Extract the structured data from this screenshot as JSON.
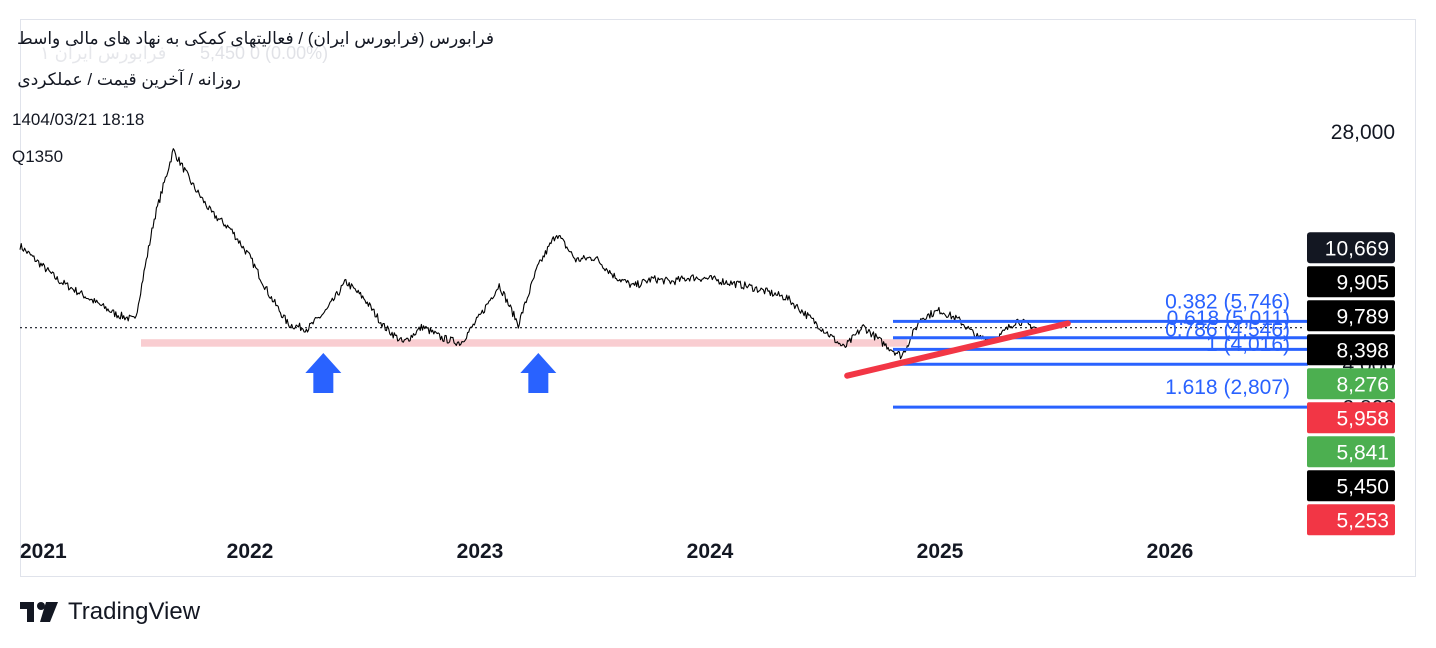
{
  "header": {
    "title": "فرابورس (فرابورس ایران) / فعالیتهای کمکی به نهاد های مالی واسط",
    "subtitle": "روزانه / آخرین قیمت / عملکردی",
    "datetime": "1404/03/21 18:18",
    "symbol": "Q1350"
  },
  "watermark": "فرابورس ایران ۱",
  "ghost_legend": "5,450 0 (0.00%)",
  "brand": {
    "name": "TradingView"
  },
  "colors": {
    "candle": "#000000",
    "fib": "#2962ff",
    "trendline": "#f23645",
    "support_zone": "#f8c8cc",
    "arrow": "#2962ff",
    "label_black": "#000000",
    "label_green": "#4caf50",
    "label_red": "#f23645",
    "label_dark": "#131722"
  },
  "chart_data": {
    "type": "line",
    "title": "",
    "xlabel": "",
    "ylabel": "",
    "x_ticks": [
      "2021",
      "2022",
      "2023",
      "2024",
      "2025",
      "2026"
    ],
    "y_ticks": [
      "28,000",
      "4,000",
      "2,800"
    ],
    "y_scale": "log",
    "last_price": 5450,
    "series": [
      {
        "x": [
          "2021-01",
          "2021-03",
          "2021-05",
          "2021-06",
          "2021-07",
          "2021-08",
          "2021-09",
          "2021-10",
          "2021-11",
          "2021-12",
          "2022-01",
          "2022-02",
          "2022-03",
          "2022-04",
          "2022-05",
          "2022-06",
          "2022-07",
          "2022-08",
          "2022-09",
          "2022-10",
          "2022-11",
          "2022-12",
          "2023-01",
          "2023-02",
          "2023-03",
          "2023-04",
          "2023-05",
          "2023-06",
          "2023-07",
          "2023-08",
          "2023-09",
          "2023-10",
          "2023-11",
          "2023-12",
          "2024-01",
          "2024-03",
          "2024-05",
          "2024-07",
          "2024-08",
          "2024-09",
          "2024-10",
          "2024-11",
          "2024-12",
          "2025-01",
          "2025-02",
          "2025-03",
          "2025-04",
          "2025-05",
          "2025-06"
        ],
        "values": [
          10800,
          8100,
          6700,
          6100,
          5800,
          13500,
          24000,
          18000,
          14200,
          12400,
          9800,
          7200,
          5600,
          5400,
          6300,
          8000,
          6900,
          5500,
          4800,
          5500,
          5000,
          4800,
          6000,
          7800,
          5600,
          9000,
          12000,
          9600,
          9800,
          8400,
          7700,
          8200,
          8000,
          8300,
          8200,
          7700,
          7000,
          5300,
          4600,
          5500,
          4800,
          4300,
          5900,
          6300,
          5800,
          5000,
          5000,
          5800,
          5450
        ]
      }
    ],
    "price_labels": [
      {
        "text": "10,669",
        "value": 10669,
        "color": "label_dark"
      },
      {
        "text": "9,905",
        "value": 9905,
        "color": "label_black"
      },
      {
        "text": "9,789",
        "value": 9789,
        "color": "label_black"
      },
      {
        "text": "8,398",
        "value": 8398,
        "color": "label_black"
      },
      {
        "text": "8,276",
        "value": 8276,
        "color": "label_green"
      },
      {
        "text": "5,958",
        "value": 5958,
        "color": "label_red"
      },
      {
        "text": "5,841",
        "value": 5841,
        "color": "label_green"
      },
      {
        "text": "5,450",
        "value": 5450,
        "color": "label_black"
      },
      {
        "text": "5,253",
        "value": 5253,
        "color": "label_red"
      }
    ],
    "fib_levels": [
      {
        "label": "0.382 (5,746)",
        "value": 5746
      },
      {
        "label": "0.618 (5,011)",
        "value": 5011
      },
      {
        "label": "0.786 (4,546)",
        "value": 4546
      },
      {
        "label": "1 (4,016)",
        "value": 4016
      },
      {
        "label": "1.618 (2,807)",
        "value": 2807
      }
    ],
    "support_zone": {
      "low": 4650,
      "high": 4950,
      "start": "2021-07",
      "end": "2024-10"
    },
    "trendline": {
      "start": {
        "x": "2024-08",
        "value": 3650
      },
      "end": {
        "x": "2025-06",
        "value": 5650
      }
    },
    "arrows": [
      {
        "x": "2022-03",
        "value": 4600
      },
      {
        "x": "2023-03",
        "value": 4600
      }
    ]
  }
}
